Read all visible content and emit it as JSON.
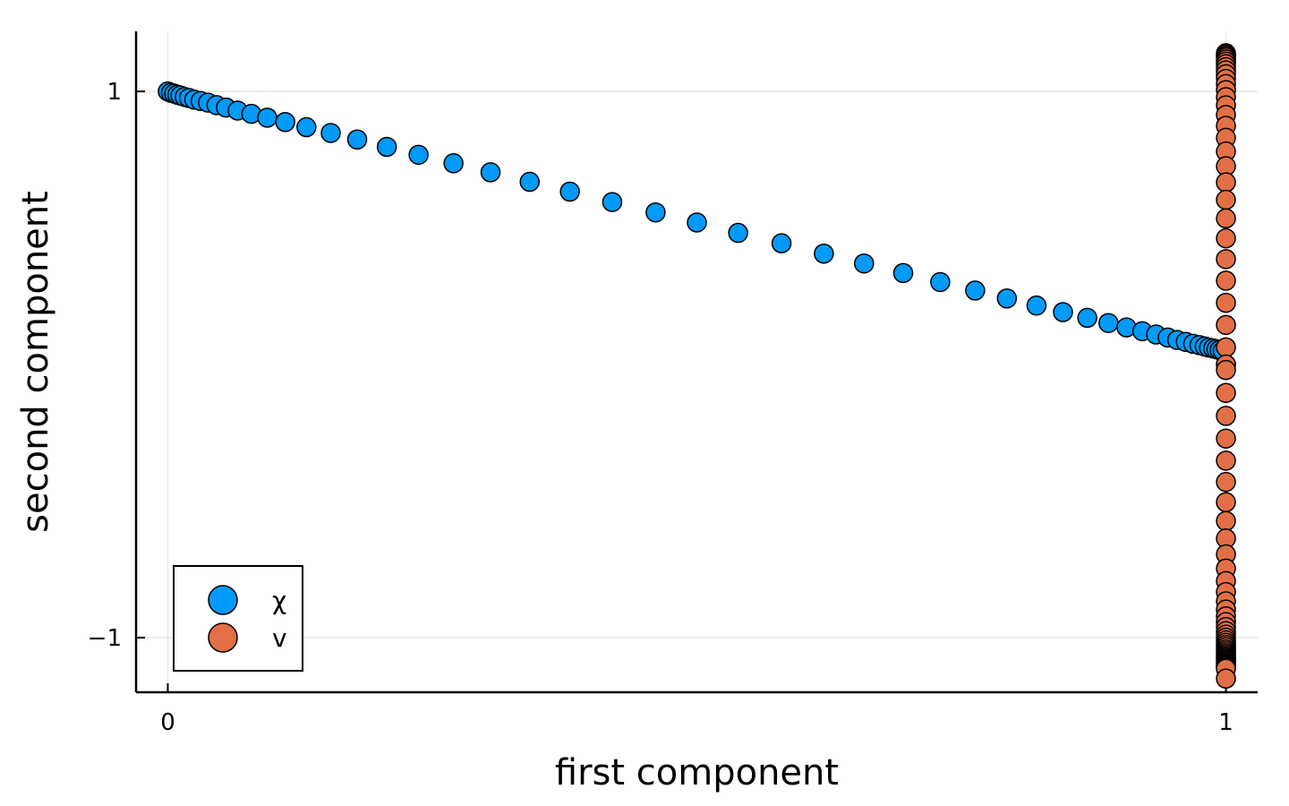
{
  "chart_data": {
    "type": "scatter",
    "title": "",
    "xlabel": "first component",
    "ylabel": "second component",
    "xlim": [
      -0.03,
      1.03
    ],
    "ylim": [
      -1.2,
      1.22
    ],
    "xticks": [
      0,
      1
    ],
    "xtick_labels": [
      "0",
      "1"
    ],
    "yticks": [
      -1,
      1
    ],
    "ytick_labels": [
      "−1",
      "1"
    ],
    "grid": true,
    "legend_position": "bottom-left",
    "series": [
      {
        "name": "χ",
        "color": "#009af9",
        "points": [
          [
            0.0,
            1.0
          ],
          [
            0.003,
            0.995
          ],
          [
            0.006,
            0.992
          ],
          [
            0.009,
            0.988
          ],
          [
            0.012,
            0.985
          ],
          [
            0.016,
            0.98
          ],
          [
            0.02,
            0.976
          ],
          [
            0.025,
            0.97
          ],
          [
            0.031,
            0.965
          ],
          [
            0.038,
            0.959
          ],
          [
            0.046,
            0.95
          ],
          [
            0.055,
            0.941
          ],
          [
            0.066,
            0.93
          ],
          [
            0.079,
            0.918
          ],
          [
            0.094,
            0.904
          ],
          [
            0.111,
            0.888
          ],
          [
            0.131,
            0.869
          ],
          [
            0.154,
            0.848
          ],
          [
            0.179,
            0.824
          ],
          [
            0.207,
            0.797
          ],
          [
            0.237,
            0.768
          ],
          [
            0.27,
            0.737
          ],
          [
            0.305,
            0.704
          ],
          [
            0.342,
            0.669
          ],
          [
            0.38,
            0.633
          ],
          [
            0.42,
            0.595
          ],
          [
            0.461,
            0.557
          ],
          [
            0.5,
            0.52
          ],
          [
            0.539,
            0.482
          ],
          [
            0.58,
            0.444
          ],
          [
            0.62,
            0.406
          ],
          [
            0.658,
            0.37
          ],
          [
            0.695,
            0.335
          ],
          [
            0.73,
            0.302
          ],
          [
            0.763,
            0.271
          ],
          [
            0.793,
            0.242
          ],
          [
            0.821,
            0.216
          ],
          [
            0.846,
            0.192
          ],
          [
            0.869,
            0.171
          ],
          [
            0.889,
            0.152
          ],
          [
            0.906,
            0.136
          ],
          [
            0.921,
            0.122
          ],
          [
            0.934,
            0.11
          ],
          [
            0.945,
            0.099
          ],
          [
            0.954,
            0.09
          ],
          [
            0.962,
            0.083
          ],
          [
            0.969,
            0.076
          ],
          [
            0.975,
            0.071
          ],
          [
            0.98,
            0.066
          ],
          [
            0.984,
            0.062
          ],
          [
            0.988,
            0.059
          ],
          [
            0.991,
            0.056
          ],
          [
            0.994,
            0.053
          ],
          [
            0.997,
            0.05
          ],
          [
            1.0,
            0.0
          ]
        ]
      },
      {
        "name": "v",
        "color": "#e26f46",
        "x": 1,
        "y_values": [
          1.14,
          1.135,
          1.13,
          1.124,
          1.117,
          1.109,
          1.1,
          1.089,
          1.077,
          1.063,
          1.046,
          1.027,
          1.005,
          0.979,
          0.949,
          0.914,
          0.874,
          0.83,
          0.78,
          0.726,
          0.667,
          0.603,
          0.535,
          0.462,
          0.386,
          0.307,
          0.226,
          0.145,
          0.063,
          0.0,
          -0.02,
          -0.104,
          -0.188,
          -0.271,
          -0.352,
          -0.43,
          -0.504,
          -0.573,
          -0.637,
          -0.695,
          -0.747,
          -0.793,
          -0.833,
          -0.867,
          -0.897,
          -0.922,
          -0.943,
          -0.961,
          -0.976,
          -0.989,
          -1.0,
          -1.01,
          -1.019,
          -1.027,
          -1.035,
          -1.043,
          -1.05,
          -1.057,
          -1.063,
          -1.069,
          -1.074,
          -1.079,
          -1.084,
          -1.089,
          -1.094,
          -1.098,
          -1.102,
          -1.106,
          -1.11,
          -1.114,
          -1.15
        ]
      }
    ]
  }
}
